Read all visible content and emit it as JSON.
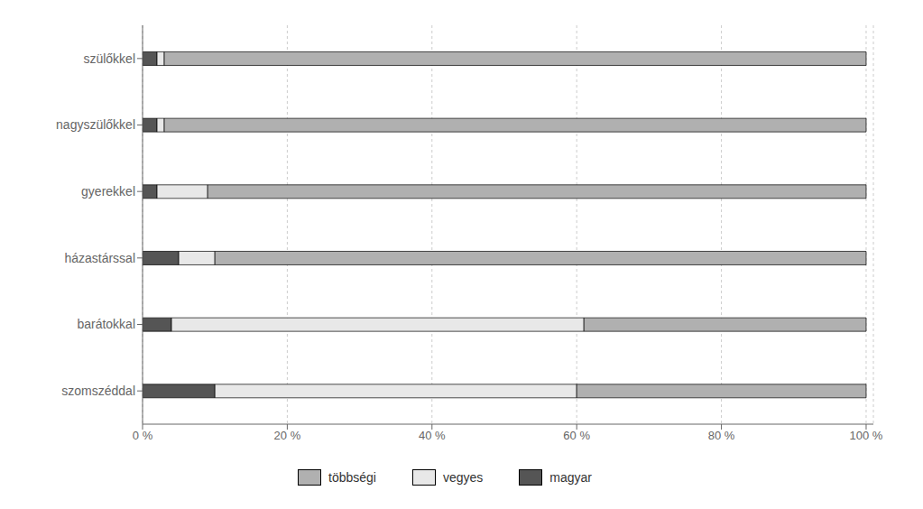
{
  "chart_data": {
    "type": "bar",
    "orientation": "horizontal",
    "stacked": true,
    "categories": [
      "szülőkkel",
      "nagyszülőkkel",
      "gyerekkel",
      "házastárssal",
      "barátokkal",
      "szomszéddal"
    ],
    "series": [
      {
        "name": "magyar",
        "color": "#555555",
        "values": [
          2,
          2,
          2,
          5,
          4,
          10
        ]
      },
      {
        "name": "vegyes",
        "color": "#e8e8e8",
        "values": [
          1,
          1,
          7,
          5,
          57,
          50
        ]
      },
      {
        "name": "többségi",
        "color": "#b0b0b0",
        "values": [
          97,
          97,
          91,
          90,
          39,
          40
        ]
      }
    ],
    "xlim": [
      0,
      101
    ],
    "xticks": [
      {
        "value": 0,
        "label": "0 %"
      },
      {
        "value": 20,
        "label": "20 %"
      },
      {
        "value": 40,
        "label": "40 %"
      },
      {
        "value": 60,
        "label": "60 %"
      },
      {
        "value": 80,
        "label": "80 %"
      },
      {
        "value": 100,
        "label": "100 %"
      }
    ],
    "grid": true,
    "legend": "bottom"
  }
}
